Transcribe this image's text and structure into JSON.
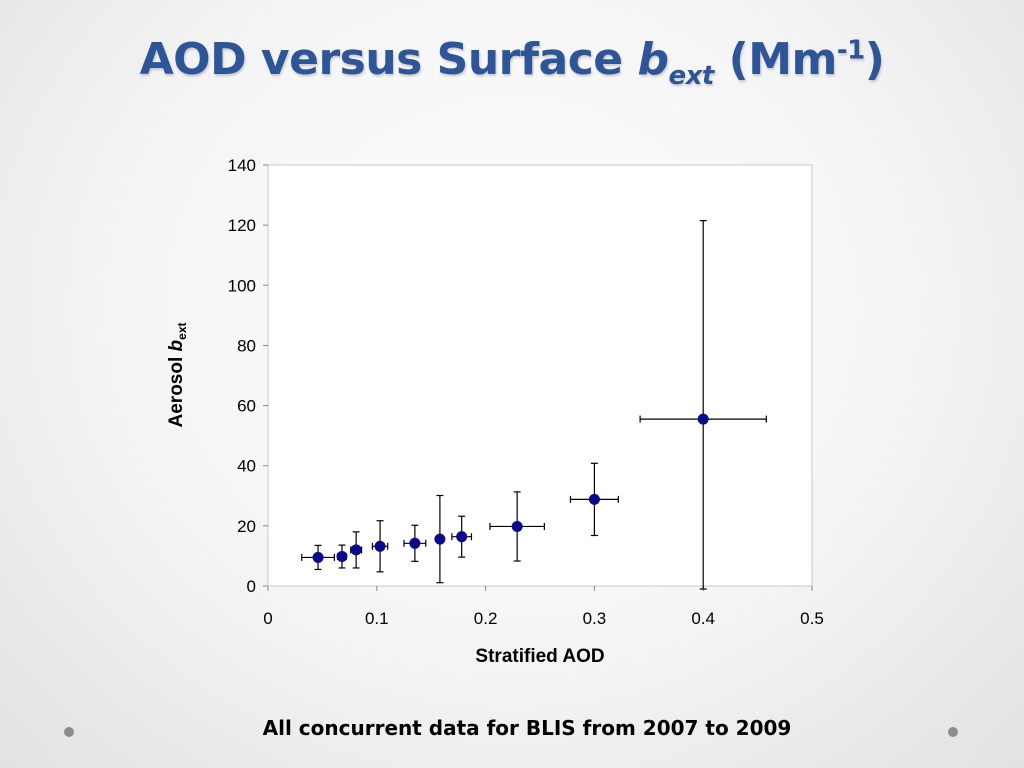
{
  "slide": {
    "title_main": "AOD versus Surface ",
    "title_symbol": "b",
    "title_subscript": "ext",
    "title_units_open": " (Mm",
    "title_units_sup": "-1",
    "title_units_close": ")",
    "caption": "All concurrent data for BLIS from 2007 to 2009"
  },
  "chart_data": {
    "type": "scatter",
    "title": "",
    "xlabel": "Stratified AOD",
    "ylabel_main": "Aerosol ",
    "ylabel_symbol": "b",
    "ylabel_subscript": "ext",
    "xlim": [
      0,
      0.5
    ],
    "ylim": [
      0,
      140
    ],
    "xticks": [
      0,
      0.1,
      0.2,
      0.3,
      0.4,
      0.5
    ],
    "xtick_labels": [
      "0",
      "0.1",
      "0.2",
      "0.3",
      "0.4",
      "0.5"
    ],
    "yticks": [
      0,
      20,
      40,
      60,
      80,
      100,
      120,
      140
    ],
    "ytick_labels": [
      "0",
      "20",
      "40",
      "60",
      "80",
      "100",
      "120",
      "140"
    ],
    "grid": false,
    "legend": false,
    "marker_color": "#0a0a8c",
    "error_bar_color": "#000000",
    "points": [
      {
        "x": 0.046,
        "y": 9.5,
        "xerr": 0.015,
        "yerr": 4.0
      },
      {
        "x": 0.068,
        "y": 9.8,
        "xerr": 0.004,
        "yerr": 3.8
      },
      {
        "x": 0.081,
        "y": 12.0,
        "xerr": 0.005,
        "yerr": 6.0
      },
      {
        "x": 0.103,
        "y": 13.2,
        "xerr": 0.007,
        "yerr": 8.5
      },
      {
        "x": 0.135,
        "y": 14.2,
        "xerr": 0.01,
        "yerr": 6.0
      },
      {
        "x": 0.158,
        "y": 15.6,
        "xerr": 0.003,
        "yerr": 14.5
      },
      {
        "x": 0.178,
        "y": 16.4,
        "xerr": 0.009,
        "yerr": 6.8
      },
      {
        "x": 0.229,
        "y": 19.8,
        "xerr": 0.025,
        "yerr": 11.5
      },
      {
        "x": 0.3,
        "y": 28.8,
        "xerr": 0.022,
        "yerr": 12.0
      },
      {
        "x": 0.4,
        "y": 55.5,
        "xerr": 0.058,
        "yerr": 66.0
      }
    ]
  }
}
